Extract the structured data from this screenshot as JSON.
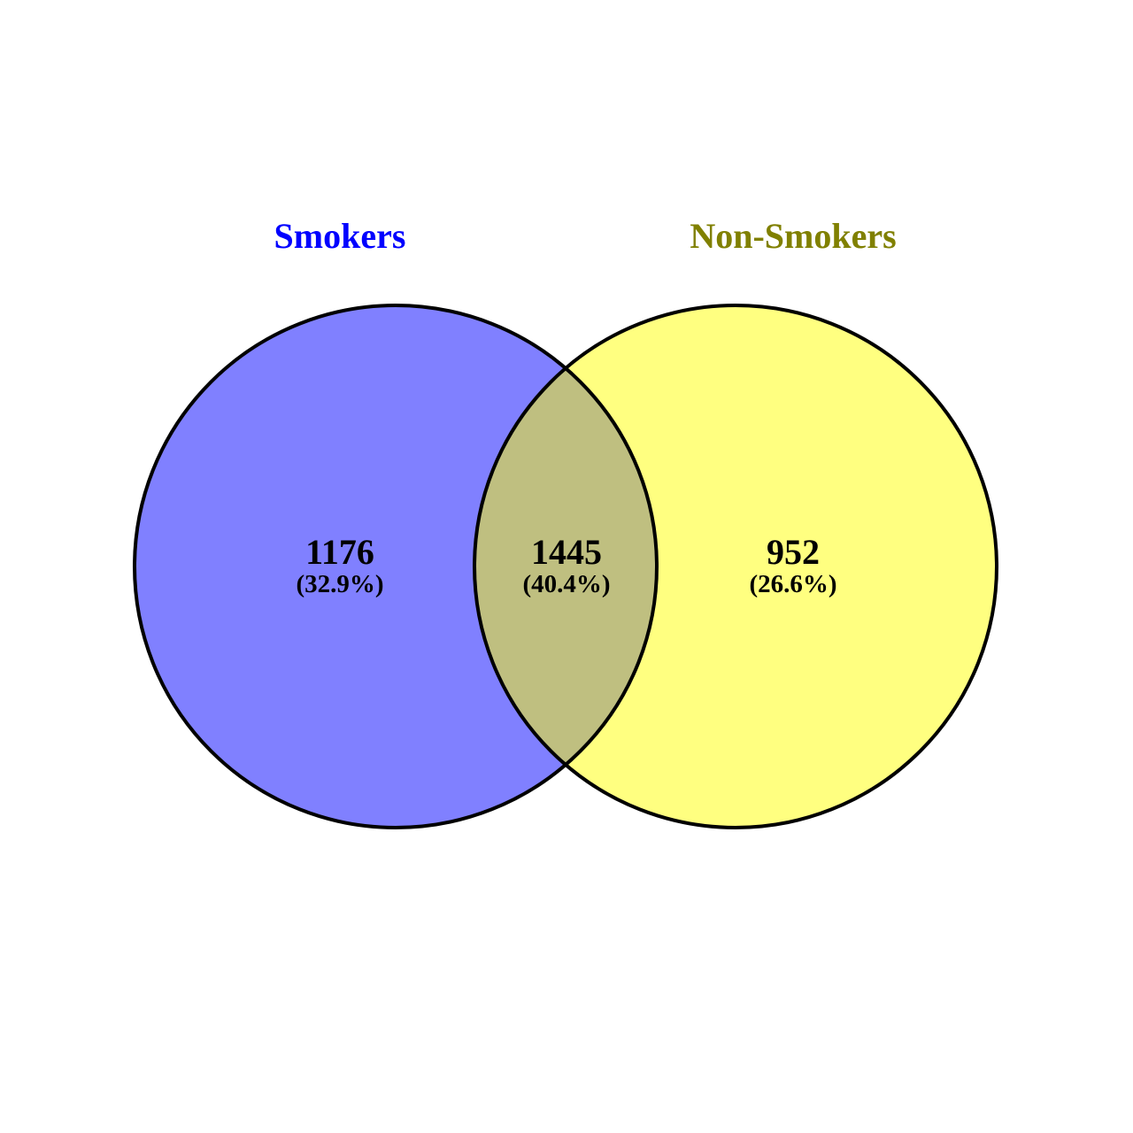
{
  "sets": [
    {
      "name": "Smokers",
      "label_color": "#0000ff",
      "fill_color": "#8080ff"
    },
    {
      "name": "Non-Smokers",
      "label_color": "#808000",
      "fill_color": "#ffff80"
    }
  ],
  "overlap_fill_color": "#bfbf80",
  "regions": {
    "left_only": {
      "count": "1176",
      "percent": "(32.9%)"
    },
    "intersection": {
      "count": "1445",
      "percent": "(40.4%)"
    },
    "right_only": {
      "count": "952",
      "percent": "(26.6%)"
    }
  }
}
